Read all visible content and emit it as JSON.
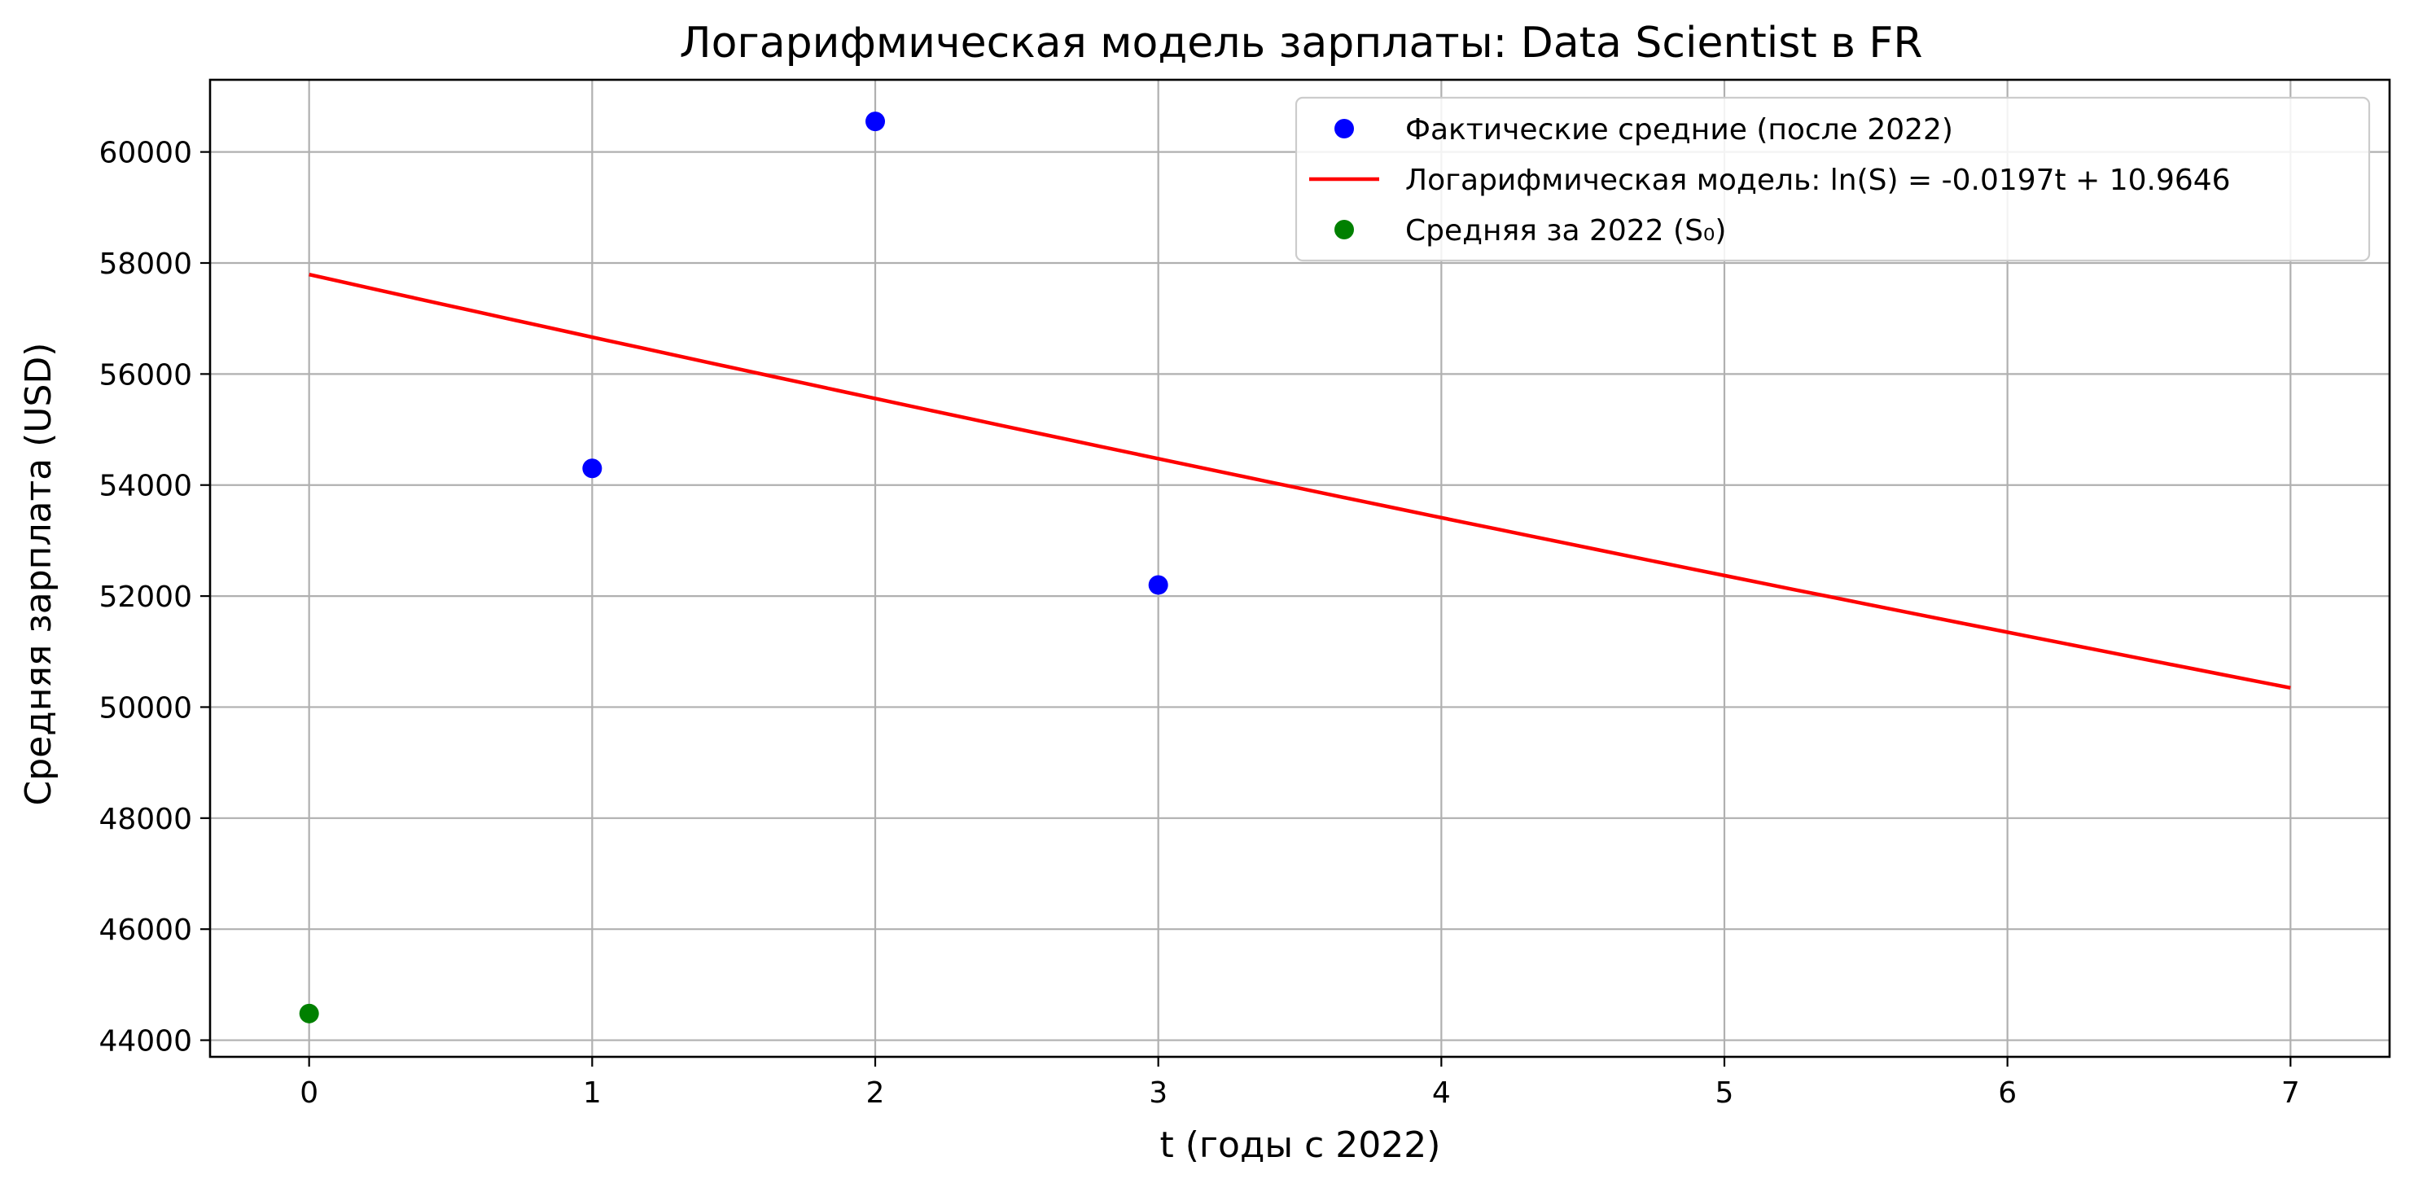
{
  "chart_data": {
    "type": "scatter",
    "title": "Логарифмическая модель зарплаты: Data Scientist в FR",
    "xlabel": "t (годы с 2022)",
    "ylabel": "Средняя зарплата (USD)",
    "xlim": [
      -0.35,
      7.35
    ],
    "ylim": [
      43700,
      61300
    ],
    "x_ticks": [
      0,
      1,
      2,
      3,
      4,
      5,
      6,
      7
    ],
    "y_ticks": [
      44000,
      46000,
      48000,
      50000,
      52000,
      54000,
      56000,
      58000,
      60000
    ],
    "grid": true,
    "legend_position": "top-right",
    "series": [
      {
        "name": "Фактические средние (после 2022)",
        "kind": "scatter",
        "color": "#0000ff",
        "points": [
          {
            "x": 1,
            "y": 54300
          },
          {
            "x": 2,
            "y": 60550
          },
          {
            "x": 3,
            "y": 52200
          }
        ]
      },
      {
        "name": "Логарифмическая модель: ln(S) = -0.0197t + 10.9646",
        "kind": "line",
        "color": "#ff0000",
        "slope": -0.0197,
        "intercept": 10.9646,
        "x_range": [
          0,
          7
        ]
      },
      {
        "name": "Средняя за 2022 (S₀)",
        "kind": "scatter",
        "color": "#008000",
        "points": [
          {
            "x": 0,
            "y": 44480
          }
        ]
      }
    ]
  }
}
